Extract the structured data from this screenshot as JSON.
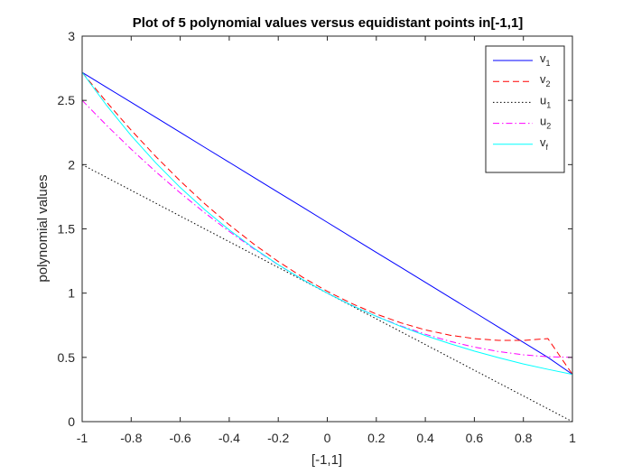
{
  "chart_data": {
    "type": "line",
    "title": "Plot of 5 polynomial values versus equidistant points in[-1,1]",
    "xlabel": "[-1,1]",
    "ylabel": "polynomial values",
    "xlim": [
      -1,
      1
    ],
    "ylim": [
      0,
      3
    ],
    "xticks": [
      "-1",
      "-0.8",
      "-0.6",
      "-0.4",
      "-0.2",
      "0",
      "0.2",
      "0.4",
      "0.6",
      "0.8",
      "1"
    ],
    "yticks": [
      "0",
      "0.5",
      "1",
      "1.5",
      "2",
      "2.5",
      "3"
    ],
    "grid": false,
    "legend_position": "top-right",
    "x": [
      -1,
      -0.9,
      -0.8,
      -0.7,
      -0.6,
      -0.5,
      -0.4,
      -0.3,
      -0.2,
      -0.1,
      0,
      0.1,
      0.2,
      0.3,
      0.4,
      0.5,
      0.6,
      0.7,
      0.8,
      0.9,
      1
    ],
    "series": [
      {
        "name": "v",
        "sub": "1",
        "color": "#0000ff",
        "dash": "solid",
        "values": [
          2.718,
          2.601,
          2.485,
          2.368,
          2.251,
          2.134,
          2.018,
          1.901,
          1.784,
          1.668,
          1.551,
          1.434,
          1.317,
          1.201,
          1.084,
          0.967,
          0.851,
          0.734,
          0.617,
          0.5,
          0.368
        ]
      },
      {
        "name": "v",
        "sub": "2",
        "color": "#ff0000",
        "dash": "dashed",
        "values": [
          2.718,
          2.486,
          2.268,
          2.064,
          1.873,
          1.696,
          1.532,
          1.382,
          1.246,
          1.123,
          1.014,
          0.919,
          0.837,
          0.769,
          0.714,
          0.673,
          0.646,
          0.632,
          0.632,
          0.646,
          0.368
        ]
      },
      {
        "name": "u",
        "sub": "1",
        "color": "#000000",
        "dash": "dotted",
        "values": [
          2.0,
          1.9,
          1.8,
          1.7,
          1.6,
          1.5,
          1.4,
          1.3,
          1.2,
          1.1,
          1.0,
          0.9,
          0.8,
          0.7,
          0.6,
          0.5,
          0.4,
          0.3,
          0.2,
          0.1,
          0.0
        ]
      },
      {
        "name": "u",
        "sub": "2",
        "color": "#ff00ff",
        "dash": "dashdot",
        "values": [
          2.5,
          2.305,
          2.12,
          1.945,
          1.78,
          1.625,
          1.48,
          1.345,
          1.22,
          1.105,
          1.0,
          0.905,
          0.82,
          0.745,
          0.68,
          0.625,
          0.58,
          0.545,
          0.52,
          0.505,
          0.5
        ]
      },
      {
        "name": "v",
        "sub": "f",
        "color": "#00ffff",
        "dash": "solid",
        "values": [
          2.718,
          2.46,
          2.226,
          2.014,
          1.822,
          1.649,
          1.492,
          1.35,
          1.221,
          1.105,
          1.0,
          0.905,
          0.819,
          0.741,
          0.67,
          0.607,
          0.549,
          0.497,
          0.449,
          0.407,
          0.368
        ]
      }
    ]
  }
}
